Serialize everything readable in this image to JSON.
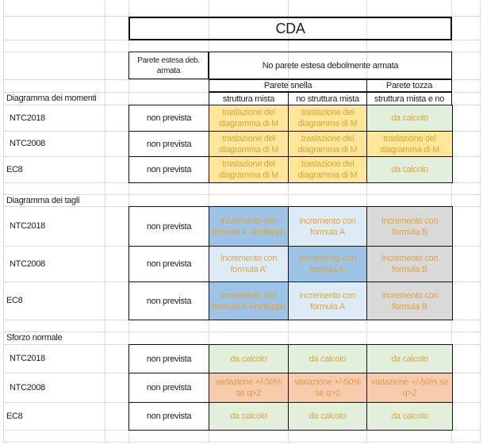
{
  "title": "CDA",
  "headers": {
    "col_a": "Parete estesa deb. armata",
    "col_b": "No parete estesa debolmente armata",
    "snella": "Parete snella",
    "tozza": "Parete tozza",
    "mista": "struttura mista",
    "no_mista": "no struttura mista",
    "mista_e_no": "struttura mista e no"
  },
  "sections": [
    {
      "label": "Diagramma dei momenti",
      "rows": [
        {
          "norm": "NTC2018",
          "cells": [
            "non prevista",
            "traslazione del diagramma di M",
            "traslazione del diagramma di M",
            "da calcolo"
          ]
        },
        {
          "norm": "NTC2008",
          "cells": [
            "non prevista",
            "traslazione del diagramma di M",
            "traslazione del diagramma di M",
            "traslazione del diagramma di M"
          ]
        },
        {
          "norm": "EC8",
          "cells": [
            "non prevista",
            "traslazione del diagramma di M",
            "traslazione del diagramma di M",
            "da calcolo"
          ]
        }
      ]
    },
    {
      "label": "Diagramma dei tagli",
      "rows": [
        {
          "norm": "NTC2018",
          "cells": [
            "non prevista",
            "Incremento con formula A +inviluppo",
            "incremento con formula A",
            "Incremento con formula B"
          ]
        },
        {
          "norm": "NTC2008",
          "cells": [
            "non prevista",
            "Incremento con formula A'",
            "Incremento con formula A'",
            "Incremento con formula B"
          ]
        },
        {
          "norm": "EC8",
          "cells": [
            "non prevista",
            "Incremento con formula A +inviluppo",
            "incremento con formula A",
            "Incremento con formula B"
          ]
        }
      ]
    },
    {
      "label": "Sforzo normale",
      "rows": [
        {
          "norm": "NTC2018",
          "cells": [
            "non prevista",
            "da calcolo",
            "da calcolo",
            "da calcolo"
          ]
        },
        {
          "norm": "NTC2008",
          "cells": [
            "non prevista",
            "variazione +/-50% se q>2",
            "variazione +/-50% se q>2",
            "variazione +/-50% se q>2"
          ]
        },
        {
          "norm": "EC8",
          "cells": [
            "non prevista",
            "da calcolo",
            "da calcolo",
            "da calcolo"
          ]
        }
      ]
    }
  ],
  "colors": {
    "orange_fill": "#ffe699",
    "green_fill": "#e2efda",
    "blue_dark_fill": "#9dc3e6",
    "blue_light_fill": "#ddebf7",
    "gray_fill": "#d9d9d9",
    "salmon_fill": "#f8cbad",
    "white_fill": "#ffffff"
  },
  "fills": [
    [
      [
        "white_fill",
        "orange_fill",
        "orange_fill",
        "green_fill"
      ],
      [
        "white_fill",
        "orange_fill",
        "orange_fill",
        "orange_fill"
      ],
      [
        "white_fill",
        "orange_fill",
        "orange_fill",
        "green_fill"
      ]
    ],
    [
      [
        "white_fill",
        "blue_dark_fill",
        "blue_light_fill",
        "gray_fill"
      ],
      [
        "white_fill",
        "blue_light_fill",
        "blue_dark_fill",
        "gray_fill"
      ],
      [
        "white_fill",
        "blue_dark_fill",
        "blue_light_fill",
        "gray_fill"
      ]
    ],
    [
      [
        "white_fill",
        "green_fill",
        "green_fill",
        "green_fill"
      ],
      [
        "white_fill",
        "salmon_fill",
        "salmon_fill",
        "salmon_fill"
      ],
      [
        "white_fill",
        "green_fill",
        "green_fill",
        "green_fill"
      ]
    ]
  ]
}
